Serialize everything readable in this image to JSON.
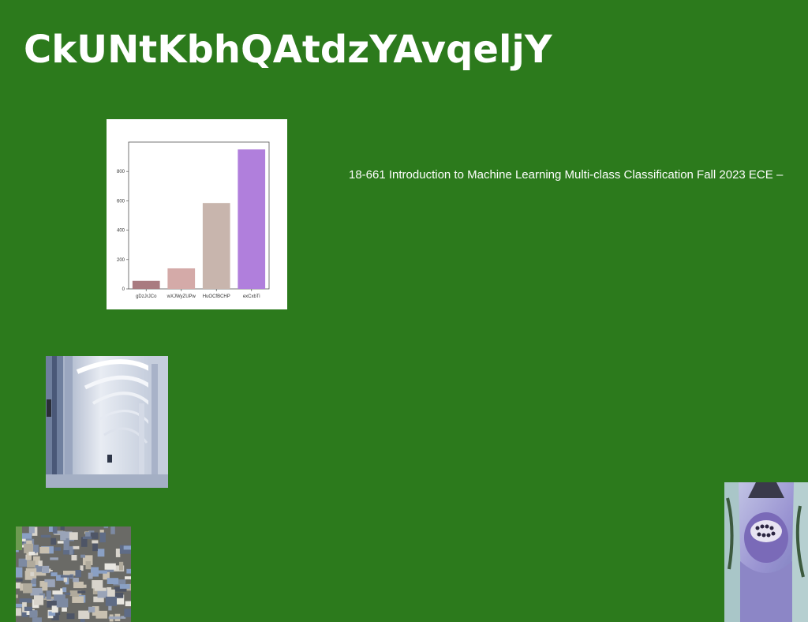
{
  "page": {
    "title": "CkUNtKbhQAtdzYAvqeljY",
    "background_color": "#2c7a1c",
    "text_color": "#ffffff"
  },
  "course_text": "18-661 Introduction to Machine Learning Multi-class Classification Fall 2023 ECE –",
  "chart_data": {
    "type": "bar",
    "categories": [
      "gDzJrJCo",
      "wXJWyZUPw",
      "HuOCfBCHP",
      "exCxbTi"
    ],
    "values": [
      55,
      140,
      585,
      950
    ],
    "colors": [
      "#a97b80",
      "#d4aaa8",
      "#c8b5ad",
      "#b07fdc"
    ],
    "ylim": [
      0,
      1000
    ],
    "yticks": [
      0,
      200,
      400,
      600,
      800
    ],
    "title": "",
    "xlabel": "",
    "ylabel": "",
    "grid": false
  },
  "images": [
    {
      "name": "arcade-corridor-photo",
      "subject": "white arched corridor"
    },
    {
      "name": "city-aerial-photo",
      "subject": "aerial view of dense city"
    },
    {
      "name": "face-closeup-photo",
      "subject": "purple-tinted face with grills"
    }
  ]
}
